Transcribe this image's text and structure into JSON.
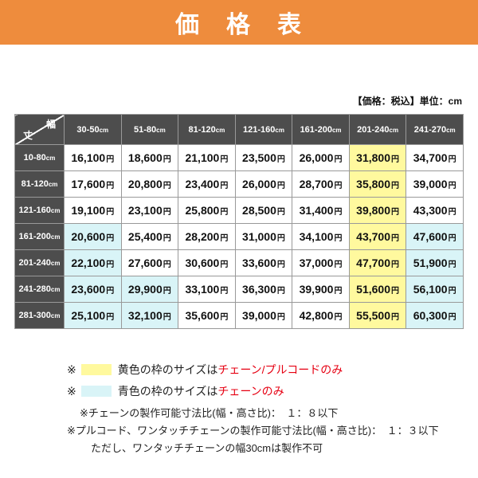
{
  "colors": {
    "accent_orange": "#ee8c3d",
    "header_gray": "#4d4d4d",
    "cell_yellow": "#fff99e",
    "cell_blue": "#d9f4f7",
    "red_text": "#e60012",
    "border": "#999999"
  },
  "page": {
    "title": "価　格　表",
    "note": "【価格：税込】単位：cm"
  },
  "table": {
    "corner": {
      "width_label": "幅",
      "height_label": "丈"
    },
    "unit_suffix": "円",
    "col_headers": [
      {
        "range": "30-50",
        "unit": "cm"
      },
      {
        "range": "51-80",
        "unit": "cm"
      },
      {
        "range": "81-120",
        "unit": "cm"
      },
      {
        "range": "121-160",
        "unit": "cm"
      },
      {
        "range": "161-200",
        "unit": "cm"
      },
      {
        "range": "201-240",
        "unit": "cm"
      },
      {
        "range": "241-270",
        "unit": "cm"
      }
    ],
    "rows": [
      {
        "header": {
          "range": "10-80",
          "unit": "cm"
        },
        "values": [
          "16,100",
          "18,600",
          "21,100",
          "23,500",
          "26,000",
          "31,800",
          "34,700"
        ],
        "bg": [
          "w",
          "w",
          "w",
          "w",
          "w",
          "y",
          "w"
        ]
      },
      {
        "header": {
          "range": "81-120",
          "unit": "cm"
        },
        "values": [
          "17,600",
          "20,800",
          "23,400",
          "26,000",
          "28,700",
          "35,800",
          "39,000"
        ],
        "bg": [
          "w",
          "w",
          "w",
          "w",
          "w",
          "y",
          "w"
        ]
      },
      {
        "header": {
          "range": "121-160",
          "unit": "cm"
        },
        "values": [
          "19,100",
          "23,100",
          "25,800",
          "28,500",
          "31,400",
          "39,800",
          "43,300"
        ],
        "bg": [
          "w",
          "w",
          "w",
          "w",
          "w",
          "y",
          "w"
        ]
      },
      {
        "header": {
          "range": "161-200",
          "unit": "cm"
        },
        "values": [
          "20,600",
          "25,400",
          "28,200",
          "31,000",
          "34,100",
          "43,700",
          "47,600"
        ],
        "bg": [
          "b",
          "w",
          "w",
          "w",
          "w",
          "y",
          "b"
        ]
      },
      {
        "header": {
          "range": "201-240",
          "unit": "cm"
        },
        "values": [
          "22,100",
          "27,600",
          "30,600",
          "33,600",
          "37,000",
          "47,700",
          "51,900"
        ],
        "bg": [
          "b",
          "w",
          "w",
          "w",
          "w",
          "y",
          "b"
        ]
      },
      {
        "header": {
          "range": "241-280",
          "unit": "cm"
        },
        "values": [
          "23,600",
          "29,900",
          "33,100",
          "36,300",
          "39,900",
          "51,600",
          "56,100"
        ],
        "bg": [
          "b",
          "b",
          "w",
          "w",
          "w",
          "y",
          "b"
        ]
      },
      {
        "header": {
          "range": "281-300",
          "unit": "cm"
        },
        "values": [
          "25,100",
          "32,100",
          "35,600",
          "39,000",
          "42,800",
          "55,500",
          "60,300"
        ],
        "bg": [
          "b",
          "b",
          "w",
          "w",
          "w",
          "y",
          "b"
        ]
      }
    ]
  },
  "legend": {
    "items": [
      {
        "marker": "※",
        "swatch": "yellow",
        "text_black": "黄色の枠のサイズは",
        "text_red": "チェーン/プルコードのみ"
      },
      {
        "marker": "※",
        "swatch": "blue",
        "text_black": "青色の枠のサイズは",
        "text_red": "チェーンのみ"
      }
    ],
    "notes": [
      "※チェーンの製作可能寸法比(幅・高さ比)：　１：８以下",
      "※プルコード、ワンタッチチェーンの製作可能寸法比(幅・高さ比)：　１：３以下",
      "ただし、ワンタッチチェーンの幅30cmは製作不可"
    ]
  },
  "chart_data": {
    "type": "table",
    "title": "価格表",
    "unit": "円",
    "columns_width_cm": [
      "30-50",
      "51-80",
      "81-120",
      "121-160",
      "161-200",
      "201-240",
      "241-270"
    ],
    "rows_height_cm": [
      "10-80",
      "81-120",
      "121-160",
      "161-200",
      "201-240",
      "241-280",
      "281-300"
    ],
    "prices_yen": [
      [
        16100,
        18600,
        21100,
        23500,
        26000,
        31800,
        34700
      ],
      [
        17600,
        20800,
        23400,
        26000,
        28700,
        35800,
        39000
      ],
      [
        19100,
        23100,
        25800,
        28500,
        31400,
        39800,
        43300
      ],
      [
        20600,
        25400,
        28200,
        31000,
        34100,
        43700,
        47600
      ],
      [
        22100,
        27600,
        30600,
        33600,
        37000,
        47700,
        51900
      ],
      [
        23600,
        29900,
        33100,
        36300,
        39900,
        51600,
        56100
      ],
      [
        25100,
        32100,
        35600,
        39000,
        42800,
        55500,
        60300
      ]
    ],
    "yellow_cells_meaning": "チェーン/プルコードのみ",
    "blue_cells_meaning": "チェーンのみ"
  }
}
